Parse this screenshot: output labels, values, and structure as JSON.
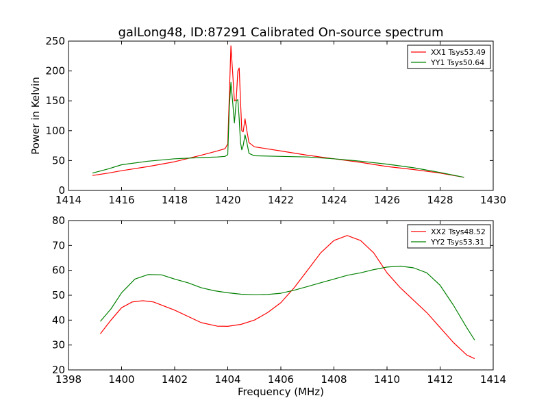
{
  "chart_data": [
    {
      "type": "line",
      "title": "galLong48, ID:87291 Calibrated On-source spectrum",
      "xlabel": "",
      "ylabel": "Power in Kelvin",
      "xlim": [
        1414,
        1430
      ],
      "ylim": [
        0,
        250
      ],
      "xticks": [
        1414,
        1416,
        1418,
        1420,
        1422,
        1424,
        1426,
        1428,
        1430
      ],
      "yticks": [
        0,
        50,
        100,
        150,
        200,
        250
      ],
      "grid": false,
      "legend_position": "top-right",
      "series": [
        {
          "name": "XX1 Tsys53.49",
          "color": "#ff0000",
          "points": [
            [
              1414.9,
              25
            ],
            [
              1415.5,
              29
            ],
            [
              1416,
              33
            ],
            [
              1417,
              40
            ],
            [
              1418,
              48
            ],
            [
              1419,
              59
            ],
            [
              1419.6,
              66
            ],
            [
              1419.9,
              70
            ],
            [
              1420.0,
              78
            ],
            [
              1420.06,
              160
            ],
            [
              1420.12,
              242
            ],
            [
              1420.18,
              200
            ],
            [
              1420.25,
              150
            ],
            [
              1420.32,
              152
            ],
            [
              1420.38,
              200
            ],
            [
              1420.43,
              205
            ],
            [
              1420.48,
              150
            ],
            [
              1420.53,
              100
            ],
            [
              1420.58,
              98
            ],
            [
              1420.65,
              120
            ],
            [
              1420.72,
              100
            ],
            [
              1420.8,
              80
            ],
            [
              1421,
              73
            ],
            [
              1422,
              66
            ],
            [
              1423,
              59
            ],
            [
              1424,
              53
            ],
            [
              1425,
              47
            ],
            [
              1426,
              40
            ],
            [
              1427,
              35
            ],
            [
              1428,
              29
            ],
            [
              1428.9,
              22
            ]
          ]
        },
        {
          "name": "YY1 Tsys50.64",
          "color": "#008000",
          "points": [
            [
              1414.9,
              29
            ],
            [
              1415.5,
              36
            ],
            [
              1416,
              43
            ],
            [
              1417,
              49
            ],
            [
              1418,
              53
            ],
            [
              1419,
              55
            ],
            [
              1419.6,
              56
            ],
            [
              1419.9,
              57
            ],
            [
              1420.0,
              60
            ],
            [
              1420.06,
              140
            ],
            [
              1420.12,
              181
            ],
            [
              1420.18,
              150
            ],
            [
              1420.25,
              113
            ],
            [
              1420.32,
              150
            ],
            [
              1420.38,
              152
            ],
            [
              1420.43,
              120
            ],
            [
              1420.48,
              80
            ],
            [
              1420.53,
              68
            ],
            [
              1420.58,
              75
            ],
            [
              1420.65,
              93
            ],
            [
              1420.72,
              80
            ],
            [
              1420.8,
              62
            ],
            [
              1421,
              58
            ],
            [
              1422,
              57
            ],
            [
              1423,
              56
            ],
            [
              1424,
              53
            ],
            [
              1425,
              49
            ],
            [
              1426,
              44
            ],
            [
              1427,
              38
            ],
            [
              1428,
              30
            ],
            [
              1428.9,
              22
            ]
          ]
        }
      ]
    },
    {
      "type": "line",
      "title": "",
      "xlabel": "Frequency (MHz)",
      "ylabel": "",
      "xlim": [
        1398,
        1414
      ],
      "ylim": [
        20,
        80
      ],
      "xticks": [
        1398,
        1400,
        1402,
        1404,
        1406,
        1408,
        1410,
        1412,
        1414
      ],
      "yticks": [
        20,
        30,
        40,
        50,
        60,
        70,
        80
      ],
      "grid": false,
      "legend_position": "top-right",
      "series": [
        {
          "name": "XX2 Tsys48.52",
          "color": "#ff0000",
          "points": [
            [
              1399.2,
              34.5
            ],
            [
              1399.6,
              40
            ],
            [
              1400,
              45
            ],
            [
              1400.4,
              47.3
            ],
            [
              1400.8,
              47.8
            ],
            [
              1401.2,
              47.3
            ],
            [
              1402,
              44
            ],
            [
              1403,
              39
            ],
            [
              1403.6,
              37.6
            ],
            [
              1404,
              37.5
            ],
            [
              1404.5,
              38.3
            ],
            [
              1405,
              40
            ],
            [
              1405.5,
              43
            ],
            [
              1406,
              47
            ],
            [
              1406.5,
              53
            ],
            [
              1407,
              60
            ],
            [
              1407.5,
              67
            ],
            [
              1408,
              72
            ],
            [
              1408.5,
              74
            ],
            [
              1409,
              72
            ],
            [
              1409.5,
              67
            ],
            [
              1410,
              59
            ],
            [
              1410.5,
              53
            ],
            [
              1411,
              48
            ],
            [
              1411.5,
              43
            ],
            [
              1412,
              37
            ],
            [
              1412.5,
              31
            ],
            [
              1413,
              26
            ],
            [
              1413.3,
              24.5
            ]
          ]
        },
        {
          "name": "YY2 Tsys53.31",
          "color": "#008000",
          "points": [
            [
              1399.2,
              39.5
            ],
            [
              1399.6,
              44.5
            ],
            [
              1400,
              51
            ],
            [
              1400.5,
              56.5
            ],
            [
              1401,
              58.3
            ],
            [
              1401.5,
              58.2
            ],
            [
              1402,
              56.5
            ],
            [
              1402.5,
              55
            ],
            [
              1403,
              53
            ],
            [
              1403.5,
              51.8
            ],
            [
              1404,
              51
            ],
            [
              1404.5,
              50.4
            ],
            [
              1405,
              50.2
            ],
            [
              1405.5,
              50.3
            ],
            [
              1406,
              50.8
            ],
            [
              1406.5,
              52
            ],
            [
              1407,
              53.5
            ],
            [
              1407.5,
              55
            ],
            [
              1408,
              56.5
            ],
            [
              1408.5,
              58
            ],
            [
              1409,
              59
            ],
            [
              1409.5,
              60.3
            ],
            [
              1410,
              61.3
            ],
            [
              1410.5,
              61.7
            ],
            [
              1411,
              61
            ],
            [
              1411.5,
              59
            ],
            [
              1412,
              54
            ],
            [
              1412.5,
              46
            ],
            [
              1413,
              37
            ],
            [
              1413.3,
              32
            ]
          ]
        }
      ]
    }
  ]
}
